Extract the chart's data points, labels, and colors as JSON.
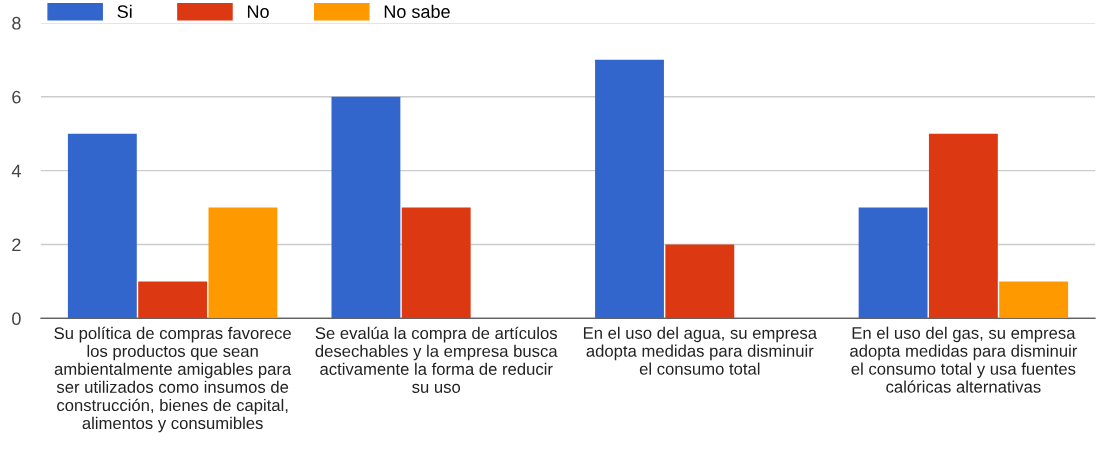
{
  "chart_data": {
    "type": "bar",
    "categories": [
      "Su política de compras favorece\nlos productos que sean\nambientalmente amigables para\nser utilizados como insumos de\nconstrucción, bienes de capital,\nalimentos y consumibles",
      "Se evalúa la compra de artículos\ndesechables y la empresa busca\nactivamente la forma de reducir\nsu uso",
      "En el uso del agua, su empresa\nadopta medidas para disminuir\nel consumo total",
      "En el uso del gas, su empresa\nadopta medidas para disminuir\nel consumo total y usa fuentes\ncalóricas alternativas"
    ],
    "series": [
      {
        "name": "Si",
        "color": "#3366cc",
        "values": [
          5,
          6,
          7,
          3
        ]
      },
      {
        "name": "No",
        "color": "#dc3912",
        "values": [
          1,
          3,
          2,
          5
        ]
      },
      {
        "name": "No sabe",
        "color": "#ff9900",
        "values": [
          3,
          0,
          0,
          1
        ]
      }
    ],
    "ylim": [
      0,
      8
    ],
    "yticks": [
      0,
      2,
      4,
      6,
      8
    ],
    "grid": "y",
    "legend": "top left"
  }
}
